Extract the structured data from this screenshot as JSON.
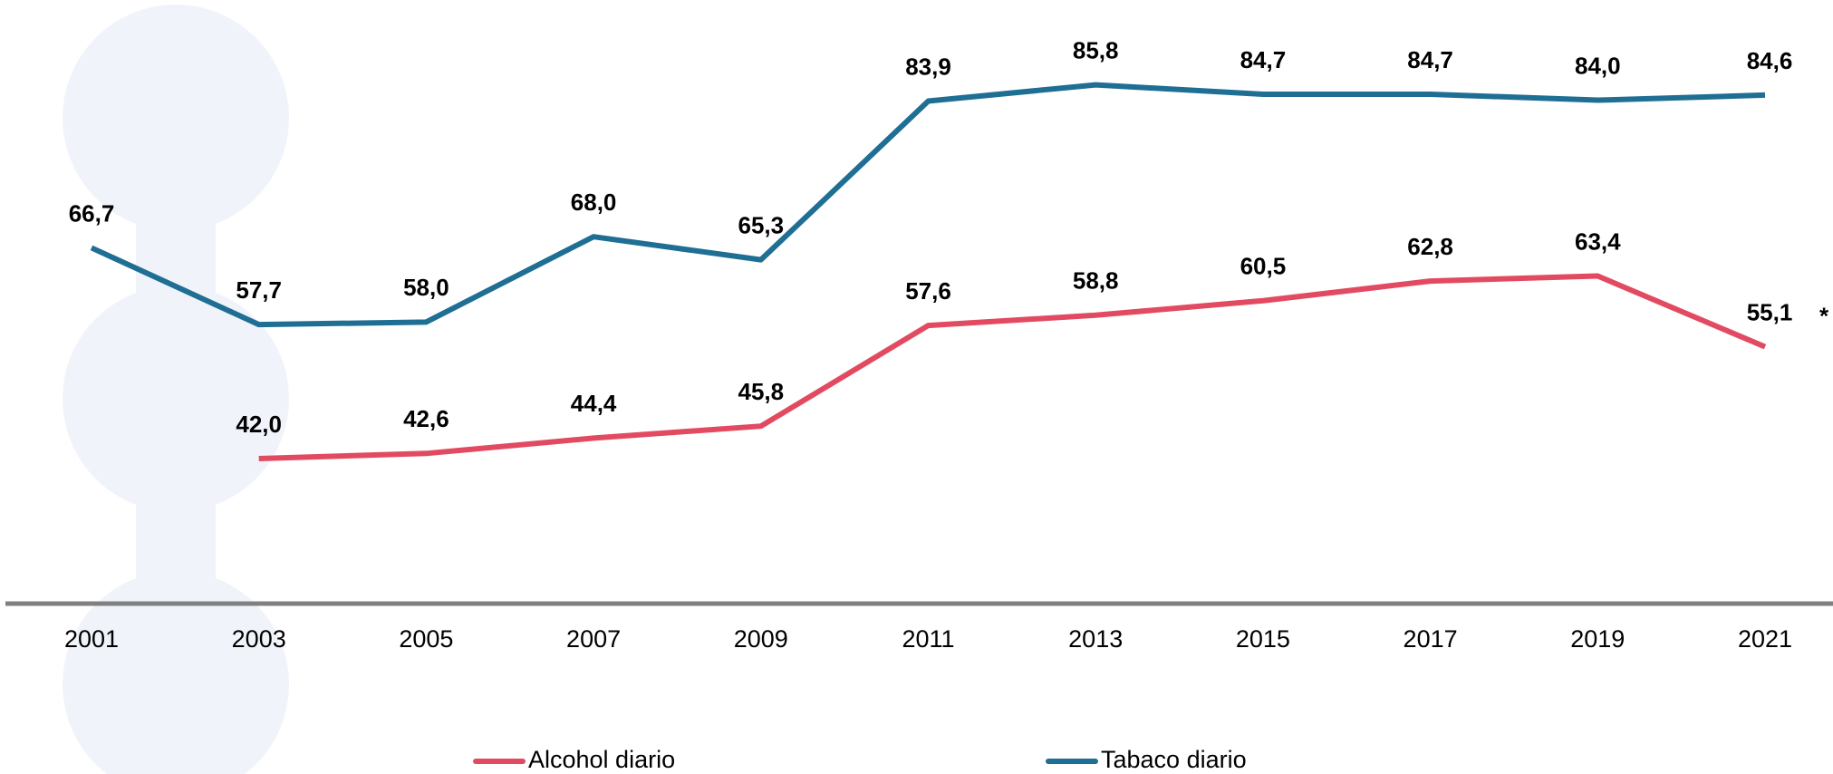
{
  "chart_data": {
    "type": "line",
    "categories": [
      "2001",
      "2003",
      "2005",
      "2007",
      "2009",
      "2011",
      "2013",
      "2015",
      "2017",
      "2019",
      "2021"
    ],
    "series": [
      {
        "name": "Alcohol diario",
        "color": "#e24a62",
        "values": [
          null,
          42.0,
          42.6,
          44.4,
          45.8,
          57.6,
          58.8,
          60.5,
          62.8,
          63.4,
          55.1
        ],
        "value_labels": [
          null,
          "42,0",
          "42,6",
          "44,4",
          "45,8",
          "57,6",
          "58,8",
          "60,5",
          "62,8",
          "63,4",
          "55,1"
        ]
      },
      {
        "name": "Tabaco diario",
        "color": "#1f6e94",
        "values": [
          66.7,
          57.7,
          58.0,
          68.0,
          65.3,
          83.9,
          85.8,
          84.7,
          84.7,
          84.0,
          84.6
        ],
        "value_labels": [
          "66,7",
          "57,7",
          "58,0",
          "68,0",
          "65,3",
          "83,9",
          "85,8",
          "84,7",
          "84,7",
          "84,0",
          "84,6"
        ]
      }
    ],
    "annotation": "*",
    "ylim": [
      25,
      95
    ],
    "grid": false,
    "legend": "bottom"
  }
}
